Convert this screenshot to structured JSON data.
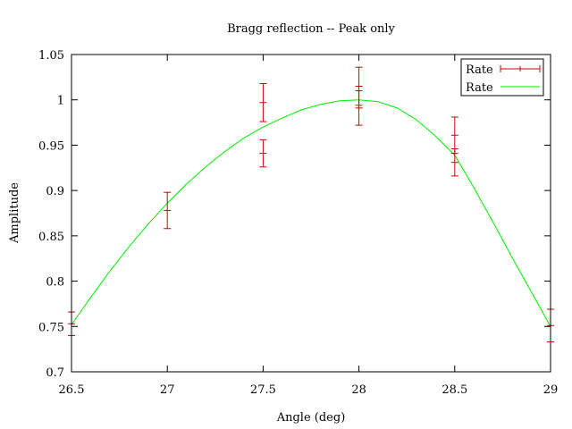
{
  "chart_data": {
    "type": "scatter",
    "title": "Bragg reflection -- Peak only",
    "xlabel": "Angle (deg)",
    "ylabel": "Amplitude",
    "xlim": [
      26.5,
      29
    ],
    "ylim": [
      0.7,
      1.05
    ],
    "xticks": [
      "26.5",
      "27",
      "27.5",
      "28",
      "28.5",
      "29"
    ],
    "yticks": [
      "0.7",
      "0.75",
      "0.8",
      "0.85",
      "0.9",
      "0.95",
      "1",
      "1.05"
    ],
    "grid": false,
    "legend_position": "top-right",
    "series": [
      {
        "name": "Rate",
        "kind": "errorbars",
        "color": "#cc0000",
        "points": [
          {
            "x": 26.5,
            "y": 0.753,
            "err": 0.013
          },
          {
            "x": 27.0,
            "y": 0.878,
            "err": 0.02
          },
          {
            "x": 27.5,
            "y": 0.997,
            "err": 0.021
          },
          {
            "x": 27.5,
            "y": 0.941,
            "err": 0.015
          },
          {
            "x": 28.0,
            "y": 1.015,
            "err": 0.021
          },
          {
            "x": 28.0,
            "y": 0.991,
            "err": 0.019
          },
          {
            "x": 28.5,
            "y": 0.961,
            "err": 0.02
          },
          {
            "x": 28.5,
            "y": 0.931,
            "err": 0.015
          },
          {
            "x": 29.0,
            "y": 0.751,
            "err": 0.018
          }
        ]
      },
      {
        "name": "Rate",
        "kind": "curve",
        "color": "#00ee00",
        "x": [
          26.5,
          26.6,
          26.7,
          26.8,
          26.9,
          27.0,
          27.1,
          27.2,
          27.3,
          27.4,
          27.5,
          27.6,
          27.7,
          27.8,
          27.9,
          28.0,
          28.1,
          28.2,
          28.3,
          28.4,
          28.5,
          28.6,
          28.7,
          28.8,
          28.9,
          29.0
        ],
        "y": [
          0.752,
          0.782,
          0.811,
          0.838,
          0.863,
          0.886,
          0.907,
          0.926,
          0.943,
          0.958,
          0.97,
          0.98,
          0.989,
          0.995,
          0.999,
          1.0,
          0.998,
          0.991,
          0.978,
          0.96,
          0.939,
          0.903,
          0.865,
          0.826,
          0.788,
          0.75
        ]
      }
    ]
  }
}
